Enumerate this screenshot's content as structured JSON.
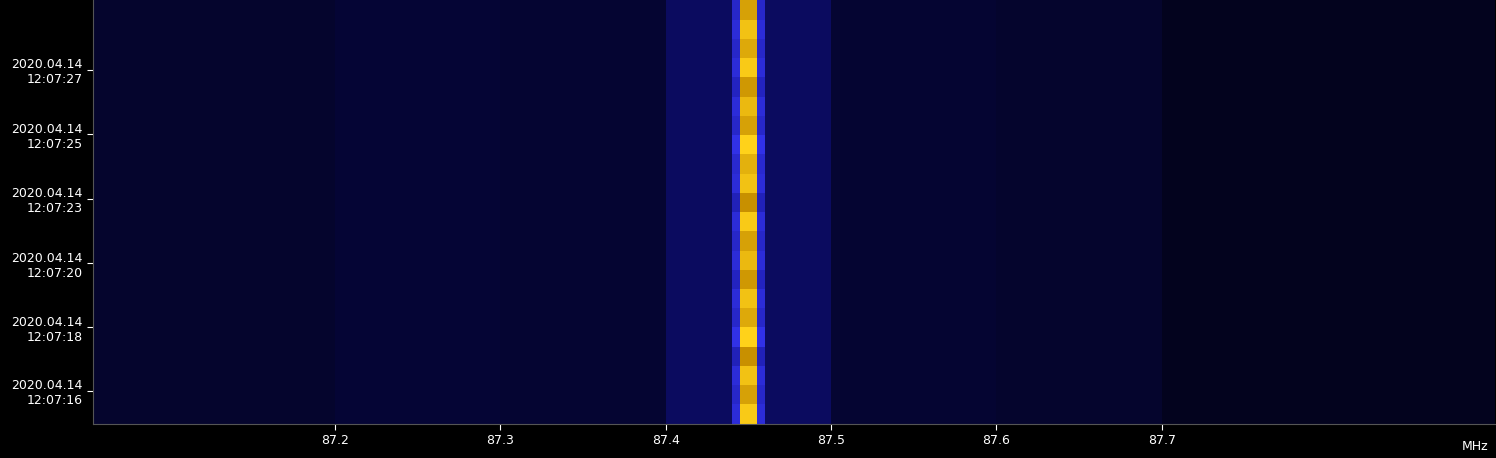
{
  "chart_data": {
    "type": "heatmap",
    "x_unit": "MHz",
    "x_edges": [
      87.0536,
      87.2,
      87.3,
      87.4,
      87.44,
      87.445,
      87.455,
      87.46,
      87.5,
      87.6,
      87.7,
      87.9012
    ],
    "y_edges": [
      0,
      2,
      4,
      6,
      8,
      10,
      12,
      14,
      16,
      18,
      20,
      22,
      24,
      26,
      28,
      30,
      32,
      34,
      36,
      38,
      40,
      42,
      44
    ],
    "xlim": [
      87.0536,
      87.9012
    ],
    "xticks": [
      87.2,
      87.3,
      87.4,
      87.5,
      87.6,
      87.7
    ],
    "ylim": [
      0,
      44
    ],
    "yticks": [
      {
        "value": 3.4,
        "label": "2020.04.14\n12:07:16"
      },
      {
        "value": 10.0,
        "label": "2020.04.14\n12:07:18"
      },
      {
        "value": 16.7,
        "label": "2020.04.14\n12:07:20"
      },
      {
        "value": 23.4,
        "label": "2020.04.14\n12:07:23"
      },
      {
        "value": 30.1,
        "label": "2020.04.14\n12:07:25"
      },
      {
        "value": 36.8,
        "label": "2020.04.14\n12:07:27"
      }
    ],
    "zlim": [
      0,
      1
    ],
    "cells": [
      [
        0.12,
        0.14,
        0.13,
        0.22,
        0.4,
        0.95,
        0.4,
        0.22,
        0.13,
        0.12,
        0.08
      ],
      [
        0.12,
        0.14,
        0.13,
        0.22,
        0.38,
        0.7,
        0.38,
        0.22,
        0.13,
        0.12,
        0.08
      ],
      [
        0.12,
        0.14,
        0.13,
        0.22,
        0.4,
        0.9,
        0.4,
        0.22,
        0.13,
        0.12,
        0.08
      ],
      [
        0.12,
        0.14,
        0.13,
        0.22,
        0.36,
        0.6,
        0.36,
        0.22,
        0.13,
        0.12,
        0.08
      ],
      [
        0.12,
        0.14,
        0.13,
        0.22,
        0.42,
        1.0,
        0.42,
        0.22,
        0.13,
        0.12,
        0.08
      ],
      [
        0.12,
        0.14,
        0.13,
        0.22,
        0.38,
        0.75,
        0.38,
        0.22,
        0.13,
        0.12,
        0.08
      ],
      [
        0.12,
        0.14,
        0.13,
        0.22,
        0.4,
        0.9,
        0.4,
        0.22,
        0.13,
        0.12,
        0.08
      ],
      [
        0.12,
        0.14,
        0.13,
        0.22,
        0.37,
        0.65,
        0.37,
        0.22,
        0.13,
        0.12,
        0.08
      ],
      [
        0.12,
        0.14,
        0.13,
        0.22,
        0.4,
        0.85,
        0.4,
        0.22,
        0.13,
        0.12,
        0.08
      ],
      [
        0.12,
        0.14,
        0.13,
        0.22,
        0.38,
        0.7,
        0.38,
        0.22,
        0.13,
        0.12,
        0.08
      ],
      [
        0.12,
        0.14,
        0.13,
        0.22,
        0.4,
        0.95,
        0.4,
        0.22,
        0.13,
        0.12,
        0.08
      ],
      [
        0.12,
        0.14,
        0.13,
        0.22,
        0.36,
        0.6,
        0.36,
        0.22,
        0.13,
        0.12,
        0.08
      ],
      [
        0.12,
        0.14,
        0.13,
        0.22,
        0.4,
        0.9,
        0.4,
        0.22,
        0.13,
        0.12,
        0.08
      ],
      [
        0.12,
        0.14,
        0.13,
        0.22,
        0.39,
        0.8,
        0.39,
        0.22,
        0.13,
        0.12,
        0.08
      ],
      [
        0.12,
        0.14,
        0.13,
        0.22,
        0.42,
        1.0,
        0.42,
        0.22,
        0.13,
        0.12,
        0.08
      ],
      [
        0.12,
        0.14,
        0.13,
        0.22,
        0.38,
        0.7,
        0.38,
        0.22,
        0.13,
        0.12,
        0.08
      ],
      [
        0.12,
        0.14,
        0.13,
        0.22,
        0.4,
        0.85,
        0.4,
        0.22,
        0.13,
        0.12,
        0.08
      ],
      [
        0.12,
        0.14,
        0.13,
        0.22,
        0.37,
        0.65,
        0.37,
        0.22,
        0.13,
        0.12,
        0.08
      ],
      [
        0.12,
        0.14,
        0.13,
        0.22,
        0.4,
        0.95,
        0.4,
        0.22,
        0.13,
        0.12,
        0.08
      ],
      [
        0.12,
        0.14,
        0.13,
        0.22,
        0.38,
        0.75,
        0.38,
        0.22,
        0.13,
        0.12,
        0.08
      ],
      [
        0.12,
        0.14,
        0.13,
        0.22,
        0.4,
        0.9,
        0.4,
        0.22,
        0.13,
        0.12,
        0.08
      ],
      [
        0.12,
        0.14,
        0.13,
        0.22,
        0.38,
        0.7,
        0.38,
        0.22,
        0.13,
        0.12,
        0.08
      ]
    ],
    "grid": false
  }
}
